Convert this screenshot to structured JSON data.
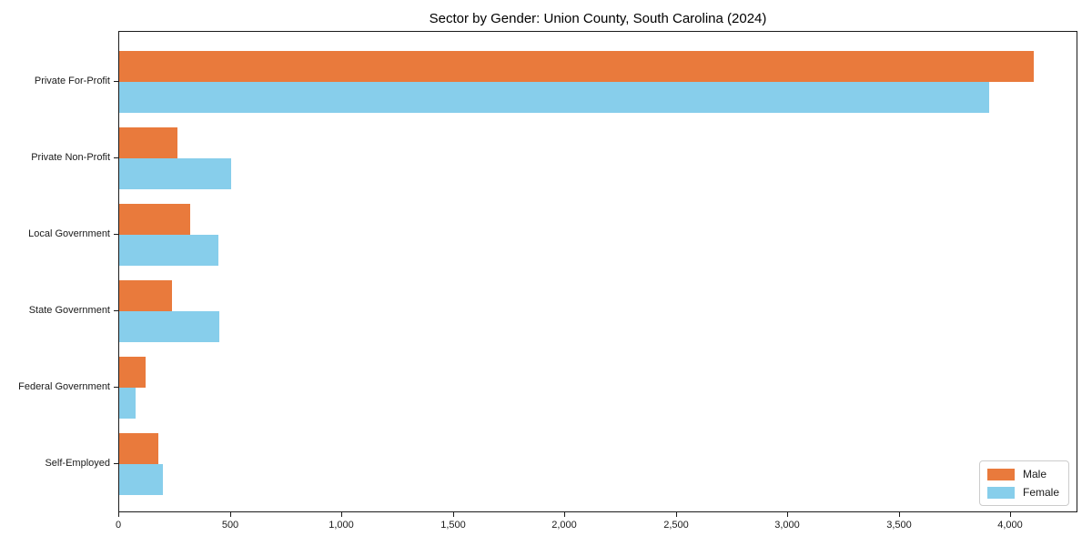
{
  "figure": {
    "title": "Sector by Gender: Union County, South Carolina (2024)",
    "background_color": "#ffffff",
    "spine_color": "#1a1a1a",
    "text_color": "#1a1a1a"
  },
  "chart_data": {
    "type": "bar",
    "orientation": "horizontal",
    "title": "Sector by Gender: Union County, South Carolina (2024)",
    "categories": [
      "Private For-Profit",
      "Private Non-Profit",
      "Local Government",
      "State Government",
      "Federal Government",
      "Self-Employed"
    ],
    "series": [
      {
        "name": "Male",
        "color": "#e97a3c",
        "values": [
          4100,
          260,
          320,
          235,
          120,
          175
        ]
      },
      {
        "name": "Female",
        "color": "#87ceeb",
        "values": [
          3900,
          500,
          445,
          450,
          75,
          195
        ]
      }
    ],
    "xlabel": "",
    "ylabel": "",
    "xlim": [
      0,
      4300
    ],
    "xticks": [
      0,
      500,
      1000,
      1500,
      2000,
      2500,
      3000,
      3500,
      4000
    ],
    "xtick_labels": [
      "0",
      "500",
      "1,000",
      "1,500",
      "2,000",
      "2,500",
      "3,000",
      "3,500",
      "4,000"
    ],
    "grid": false,
    "legend": {
      "position": "lower right",
      "entries": [
        "Male",
        "Female"
      ]
    }
  }
}
